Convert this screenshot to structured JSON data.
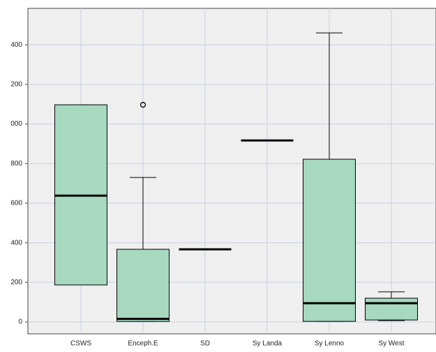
{
  "chart_data": {
    "type": "boxplot",
    "categories": [
      "CSWS",
      "Enceph.E",
      "SD",
      "Sy Landa",
      "Sy Lenno",
      "Sy West"
    ],
    "min": [
      187,
      3,
      367,
      917,
      3,
      7
    ],
    "q1": [
      187,
      3,
      367,
      917,
      3,
      10
    ],
    "median": [
      638,
      16,
      367,
      917,
      95,
      95
    ],
    "q3": [
      1097,
      367,
      367,
      917,
      822,
      120
    ],
    "max": [
      1097,
      730,
      367,
      917,
      1460,
      152
    ],
    "outliers": [
      [],
      [
        1097
      ],
      [],
      [],
      [],
      []
    ],
    "color": "#a6d9bf",
    "ylim": [
      -60,
      1584
    ],
    "yticks": [
      0,
      200,
      400,
      600,
      800,
      {
        "value": 1000,
        "label": "000"
      },
      {
        "value": 1200,
        "label": "200"
      },
      {
        "value": 1400,
        "label": "400"
      }
    ],
    "grid": true
  }
}
